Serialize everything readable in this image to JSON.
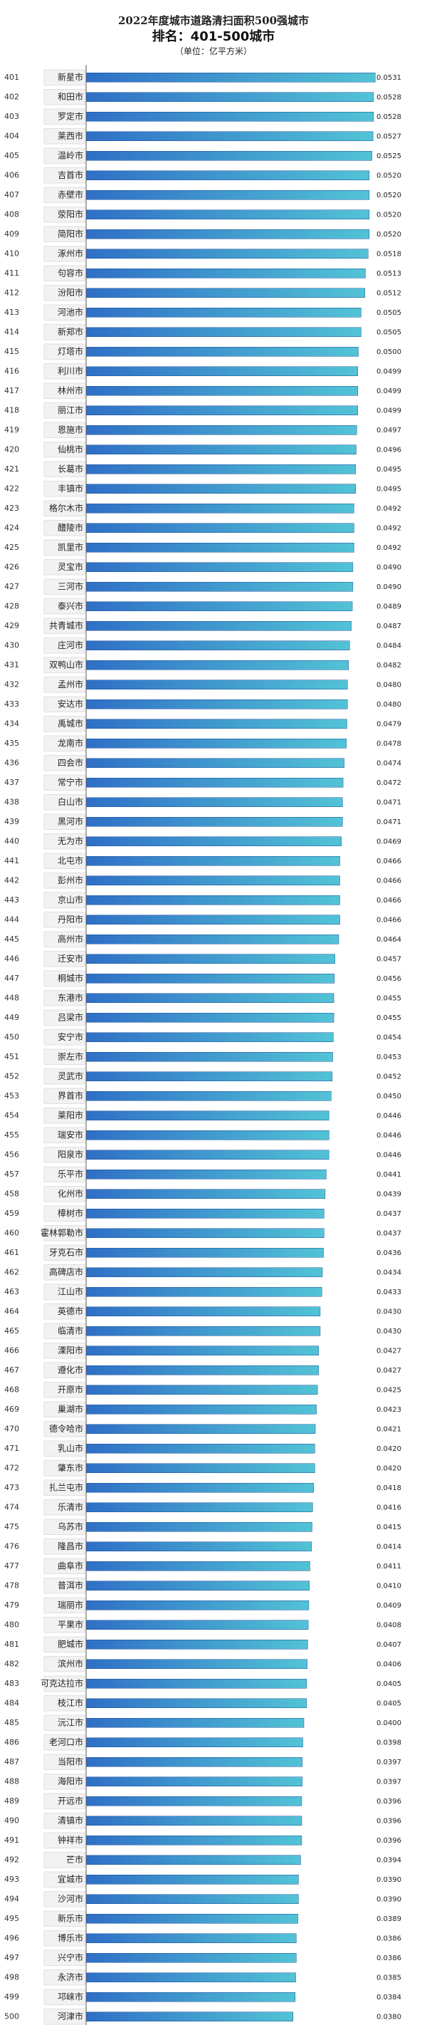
{
  "colors": {
    "bar_start": "#2f6fc6",
    "bar_end": "#52c3d6",
    "bar_edge": "#1f4f97",
    "label_bg": "#f2f2f2",
    "label_border": "#cfcfcf",
    "axis": "#555555"
  },
  "chart_data": {
    "type": "bar",
    "orientation": "horizontal",
    "title": "2022年度城市道路清扫面积500强城市",
    "subtitle": "排名：401-500城市",
    "unit": "（单位：亿平方米）",
    "xlim": [
      0,
      0.06
    ],
    "xticks": [
      "0.0000",
      "0.0100",
      "0.0200",
      "0.0300",
      "0.0400",
      "0.0500",
      "0.0600"
    ],
    "ranks": [
      "401",
      "402",
      "403",
      "404",
      "405",
      "406",
      "407",
      "408",
      "409",
      "410",
      "411",
      "412",
      "413",
      "414",
      "415",
      "416",
      "417",
      "418",
      "419",
      "420",
      "421",
      "422",
      "423",
      "424",
      "425",
      "426",
      "427",
      "428",
      "429",
      "430",
      "431",
      "432",
      "433",
      "434",
      "435",
      "436",
      "437",
      "438",
      "439",
      "440",
      "441",
      "442",
      "443",
      "444",
      "445",
      "446",
      "447",
      "448",
      "449",
      "450",
      "451",
      "452",
      "453",
      "454",
      "455",
      "456",
      "457",
      "458",
      "459",
      "460",
      "461",
      "462",
      "463",
      "464",
      "465",
      "466",
      "467",
      "468",
      "469",
      "470",
      "471",
      "472",
      "473",
      "474",
      "475",
      "476",
      "477",
      "478",
      "479",
      "480",
      "481",
      "482",
      "483",
      "484",
      "485",
      "486",
      "487",
      "488",
      "489",
      "490",
      "491",
      "492",
      "493",
      "494",
      "495",
      "496",
      "497",
      "498",
      "499",
      "500"
    ],
    "categories": [
      "新星市",
      "和田市",
      "罗定市",
      "莱西市",
      "温岭市",
      "吉首市",
      "赤壁市",
      "荥阳市",
      "简阳市",
      "涿州市",
      "句容市",
      "汾阳市",
      "河池市",
      "新郑市",
      "灯塔市",
      "利川市",
      "林州市",
      "丽江市",
      "恩施市",
      "仙桃市",
      "长葛市",
      "丰镇市",
      "格尔木市",
      "醴陵市",
      "凯里市",
      "灵宝市",
      "三河市",
      "泰兴市",
      "共青城市",
      "庄河市",
      "双鸭山市",
      "孟州市",
      "安达市",
      "禹城市",
      "龙南市",
      "四会市",
      "常宁市",
      "白山市",
      "黑河市",
      "无为市",
      "北屯市",
      "彭州市",
      "京山市",
      "丹阳市",
      "高州市",
      "迁安市",
      "桐城市",
      "东港市",
      "吕梁市",
      "安宁市",
      "崇左市",
      "灵武市",
      "界首市",
      "莱阳市",
      "瑞安市",
      "阳泉市",
      "乐平市",
      "化州市",
      "樟树市",
      "霍林郭勒市",
      "牙克石市",
      "高碑店市",
      "江山市",
      "英德市",
      "临清市",
      "溧阳市",
      "遵化市",
      "开原市",
      "巢湖市",
      "德令哈市",
      "乳山市",
      "肇东市",
      "扎兰屯市",
      "乐清市",
      "乌苏市",
      "隆昌市",
      "曲阜市",
      "普洱市",
      "瑞丽市",
      "平果市",
      "肥城市",
      "滨州市",
      "可克达拉市",
      "枝江市",
      "沅江市",
      "老河口市",
      "当阳市",
      "海阳市",
      "开远市",
      "清镇市",
      "钟祥市",
      "芒市",
      "宜城市",
      "沙河市",
      "新乐市",
      "博乐市",
      "兴宁市",
      "永济市",
      "邛崃市",
      "河津市"
    ],
    "values": [
      0.0531,
      0.0528,
      0.0528,
      0.0527,
      0.0525,
      0.052,
      0.052,
      0.052,
      0.052,
      0.0518,
      0.0513,
      0.0512,
      0.0505,
      0.0505,
      0.05,
      0.0499,
      0.0499,
      0.0499,
      0.0497,
      0.0496,
      0.0495,
      0.0495,
      0.0492,
      0.0492,
      0.0492,
      0.049,
      0.049,
      0.0489,
      0.0487,
      0.0484,
      0.0482,
      0.048,
      0.048,
      0.0479,
      0.0478,
      0.0474,
      0.0472,
      0.0471,
      0.0471,
      0.0469,
      0.0466,
      0.0466,
      0.0466,
      0.0466,
      0.0464,
      0.0457,
      0.0456,
      0.0455,
      0.0455,
      0.0454,
      0.0453,
      0.0452,
      0.045,
      0.0446,
      0.0446,
      0.0446,
      0.0441,
      0.0439,
      0.0437,
      0.0437,
      0.0436,
      0.0434,
      0.0433,
      0.043,
      0.043,
      0.0427,
      0.0427,
      0.0425,
      0.0423,
      0.0421,
      0.042,
      0.042,
      0.0418,
      0.0416,
      0.0415,
      0.0414,
      0.0411,
      0.041,
      0.0409,
      0.0408,
      0.0407,
      0.0406,
      0.0405,
      0.0405,
      0.04,
      0.0398,
      0.0397,
      0.0397,
      0.0396,
      0.0396,
      0.0396,
      0.0394,
      0.039,
      0.039,
      0.0389,
      0.0386,
      0.0386,
      0.0385,
      0.0384,
      0.038
    ],
    "value_labels": [
      "0.0531",
      "0.0528",
      "0.0528",
      "0.0527",
      "0.0525",
      "0.0520",
      "0.0520",
      "0.0520",
      "0.0520",
      "0.0518",
      "0.0513",
      "0.0512",
      "0.0505",
      "0.0505",
      "0.0500",
      "0.0499",
      "0.0499",
      "0.0499",
      "0.0497",
      "0.0496",
      "0.0495",
      "0.0495",
      "0.0492",
      "0.0492",
      "0.0492",
      "0.0490",
      "0.0490",
      "0.0489",
      "0.0487",
      "0.0484",
      "0.0482",
      "0.0480",
      "0.0480",
      "0.0479",
      "0.0478",
      "0.0474",
      "0.0472",
      "0.0471",
      "0.0471",
      "0.0469",
      "0.0466",
      "0.0466",
      "0.0466",
      "0.0466",
      "0.0464",
      "0.0457",
      "0.0456",
      "0.0455",
      "0.0455",
      "0.0454",
      "0.0453",
      "0.0452",
      "0.0450",
      "0.0446",
      "0.0446",
      "0.0446",
      "0.0441",
      "0.0439",
      "0.0437",
      "0.0437",
      "0.0436",
      "0.0434",
      "0.0433",
      "0.0430",
      "0.0430",
      "0.0427",
      "0.0427",
      "0.0425",
      "0.0423",
      "0.0421",
      "0.0420",
      "0.0420",
      "0.0418",
      "0.0416",
      "0.0415",
      "0.0414",
      "0.0411",
      "0.0410",
      "0.0409",
      "0.0408",
      "0.0407",
      "0.0406",
      "0.0405",
      "0.0405",
      "0.0400",
      "0.0398",
      "0.0397",
      "0.0397",
      "0.0396",
      "0.0396",
      "0.0396",
      "0.0394",
      "0.0390",
      "0.0390",
      "0.0389",
      "0.0386",
      "0.0386",
      "0.0385",
      "0.0384",
      "0.0380"
    ],
    "grid": false,
    "legend": "none"
  }
}
